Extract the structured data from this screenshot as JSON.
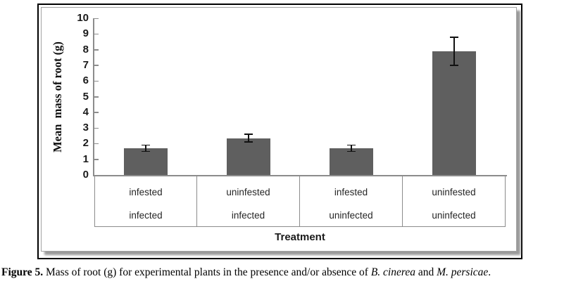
{
  "figure": {
    "caption": {
      "label": "Figure 5.",
      "text_1": "Mass of root (g) for experimental plants in the presence and/or absence of",
      "species_1": "B. cinerea",
      "text_2": "and",
      "species_2": "M. persicae",
      "text_end": "."
    }
  },
  "chart_data": {
    "type": "bar",
    "title": "",
    "xlabel": "Treatment",
    "ylabel": "Mean  mass of root (g)",
    "ylim": [
      0,
      10
    ],
    "ytick_interval": 1,
    "yticks": [
      0,
      1,
      2,
      3,
      4,
      5,
      6,
      7,
      8,
      9,
      10
    ],
    "grid": false,
    "legend": false,
    "categories": [
      {
        "line1": "infested",
        "line2": "infected"
      },
      {
        "line1": "uninfested",
        "line2": "infected"
      },
      {
        "line1": "infested",
        "line2": "uninfected"
      },
      {
        "line1": "uninfested",
        "line2": "uninfected"
      }
    ],
    "values": [
      1.7,
      2.35,
      1.7,
      7.9
    ],
    "error_bars": [
      0.2,
      0.25,
      0.2,
      0.9
    ],
    "bar_color": "#5f5f5f",
    "axis_color": "#8c8c8c",
    "error_bar_color": "#111111",
    "frame_border_color": "#000000",
    "inner_border_color": "#a3a3a3"
  }
}
